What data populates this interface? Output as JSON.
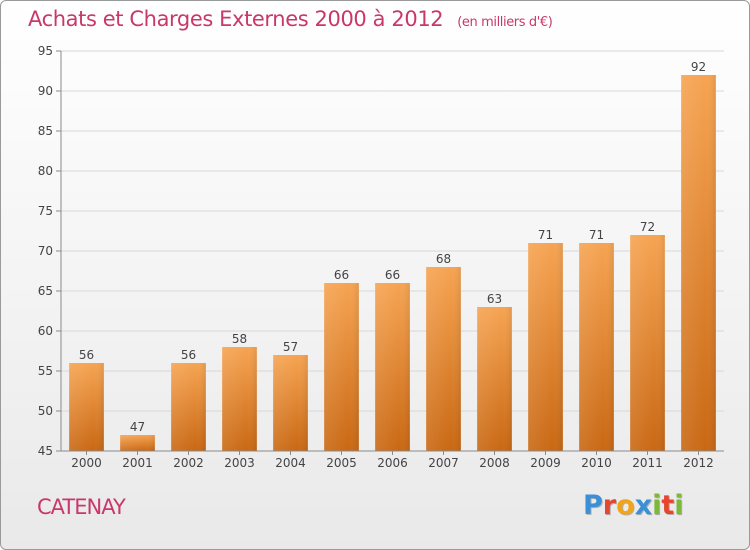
{
  "header": {
    "title": "Achats et Charges Externes 2000 à 2012",
    "subtitle": "(en milliers d'€)"
  },
  "footer": {
    "place": "CATENAY",
    "logo_text": "Proxiti",
    "logo_colors": [
      "#3a8fd6",
      "#e6452e",
      "#f2a418",
      "#3a8fd6",
      "#7db83a",
      "#e6452e",
      "#7db83a"
    ]
  },
  "colors": {
    "accent": "#c8386b",
    "bar_light": "#f6a452",
    "bar_dark": "#c96813",
    "axis": "#8a8a8a",
    "grid": "#d8d8d8"
  },
  "chart_data": {
    "type": "bar",
    "categories": [
      "2000",
      "2001",
      "2002",
      "2003",
      "2004",
      "2005",
      "2006",
      "2007",
      "2008",
      "2009",
      "2010",
      "2011",
      "2012"
    ],
    "values": [
      56,
      47,
      56,
      58,
      57,
      66,
      66,
      68,
      63,
      71,
      71,
      72,
      92
    ],
    "title": "Achats et Charges Externes 2000 à 2012",
    "subtitle": "(en milliers d'€)",
    "xlabel": "",
    "ylabel": "",
    "ylim": [
      45,
      95
    ],
    "yticks": [
      45,
      50,
      55,
      60,
      65,
      70,
      75,
      80,
      85,
      90,
      95
    ],
    "grid": true,
    "data_labels": true
  }
}
